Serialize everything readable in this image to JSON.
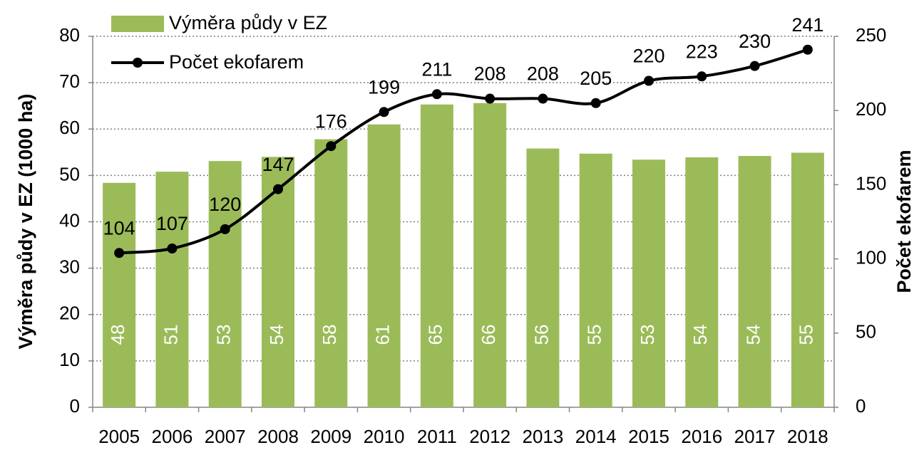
{
  "chart_data": {
    "type": "bar",
    "categories": [
      "2005",
      "2006",
      "2007",
      "2008",
      "2009",
      "2010",
      "2011",
      "2012",
      "2013",
      "2014",
      "2015",
      "2016",
      "2017",
      "2018"
    ],
    "series": [
      {
        "name": "Výměra půdy v EZ",
        "color": "#9bbb59",
        "type": "bar",
        "values": [
          48.4,
          50.8,
          53.1,
          54.0,
          57.8,
          61.0,
          65.3,
          65.6,
          55.8,
          54.7,
          53.4,
          53.9,
          54.2,
          54.9
        ],
        "value_labels": [
          "48",
          "51",
          "53",
          "54",
          "58",
          "61",
          "65",
          "66",
          "56",
          "55",
          "53",
          "54",
          "54",
          "55"
        ]
      },
      {
        "name": "Počet ekofarem",
        "color": "#000000",
        "type": "line",
        "axis": "y2",
        "values": [
          104,
          107,
          120,
          147,
          176,
          199,
          211,
          208,
          208,
          205,
          220,
          223,
          230,
          241
        ]
      }
    ],
    "y_label": "Výměra půdy v EZ (1000 ha)",
    "y2_label": "Počet ekofarem",
    "ylim": [
      0,
      80
    ],
    "yticks": [
      0,
      10,
      20,
      30,
      40,
      50,
      60,
      70,
      80
    ],
    "y2lim": [
      0,
      250
    ],
    "y2ticks": [
      0,
      50,
      100,
      150,
      200,
      250
    ],
    "grid": true
  }
}
